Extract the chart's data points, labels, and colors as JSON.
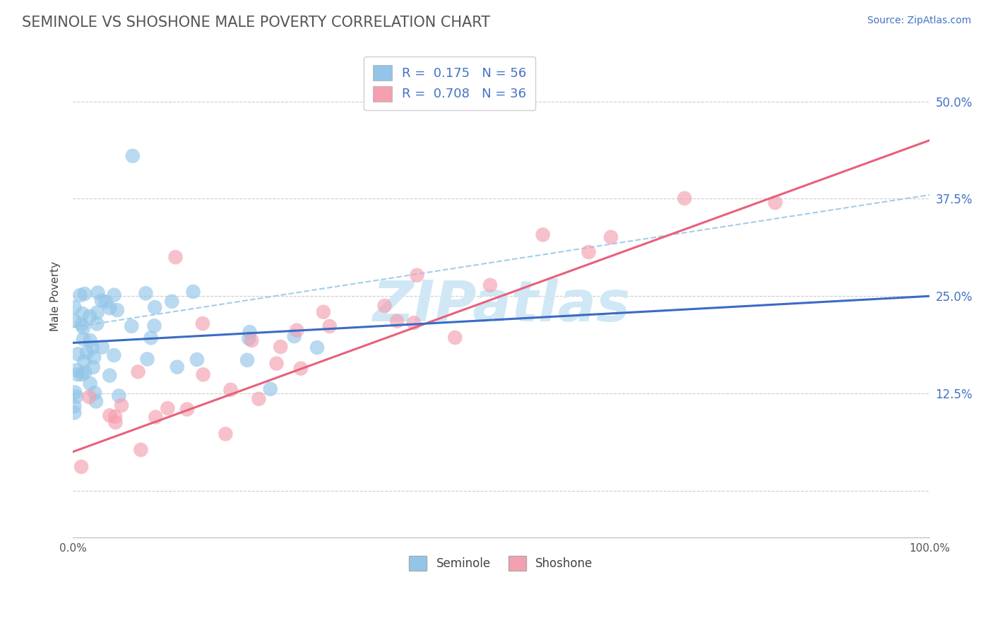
{
  "title": "SEMINOLE VS SHOSHONE MALE POVERTY CORRELATION CHART",
  "source_text": "Source: ZipAtlas.com",
  "ylabel": "Male Poverty",
  "xlim": [
    0.0,
    1.0
  ],
  "ylim": [
    -0.06,
    0.56
  ],
  "ytick_positions": [
    0.0,
    0.125,
    0.25,
    0.375,
    0.5
  ],
  "ytick_labels": [
    "",
    "12.5%",
    "25.0%",
    "37.5%",
    "50.0%"
  ],
  "seminole_R": 0.175,
  "seminole_N": 56,
  "shoshone_R": 0.708,
  "shoshone_N": 36,
  "seminole_color": "#92C5E8",
  "shoshone_color": "#F4A0B0",
  "seminole_line_color": "#3A6BC4",
  "shoshone_line_color": "#E8607A",
  "dashed_line_color": "#92C5E8",
  "background_color": "#FFFFFF",
  "grid_color": "#CCCCCC",
  "title_color": "#555555",
  "axis_label_color": "#4472C4",
  "source_color": "#4472C4",
  "watermark_color": "#D0E8F5",
  "watermark_text": "ZIPatlas",
  "legend_text_color": "#333333",
  "legend_value_color": "#4472C4"
}
